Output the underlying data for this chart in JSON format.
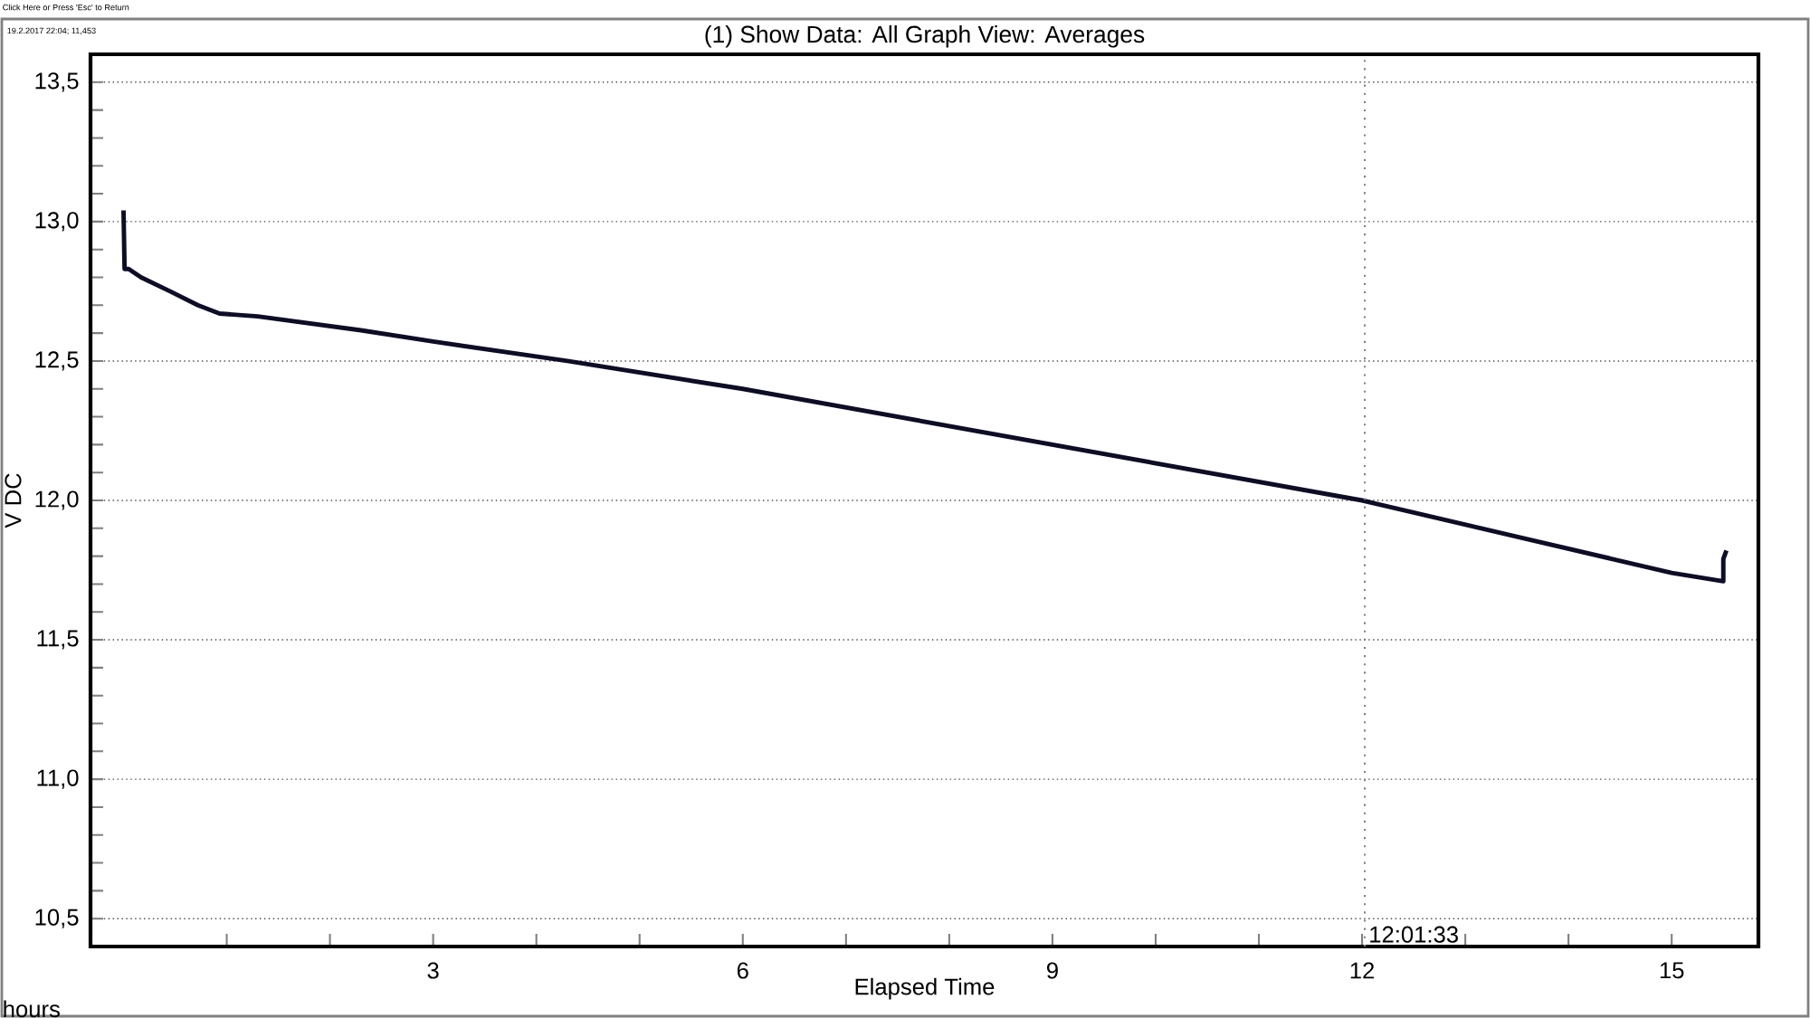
{
  "chart_data": {
    "type": "line",
    "title": "(1)  Show Data: All   Graph View: Averages",
    "xlabel": "Elapsed Time",
    "ylabel": "V DC",
    "annotations": [
      "hours",
      "19.2.2017 22:04; 11,453",
      "Click Here or Press 'Esc' to Return"
    ],
    "x": [
      0,
      0.01,
      0.05,
      0.17,
      0.45,
      0.72,
      0.93,
      1.3,
      2.3,
      3,
      4.3,
      6,
      7.5,
      9,
      10.5,
      12,
      13.5,
      15,
      15.5,
      15.5,
      15.53
    ],
    "series": [
      {
        "color": "#0d0d26",
        "values": [
          13.04,
          12.83,
          12.83,
          12.8,
          12.75,
          12.7,
          12.67,
          12.66,
          12.61,
          12.57,
          12.5,
          12.4,
          12.3,
          12.2,
          12.1,
          12.0,
          11.87,
          11.74,
          11.71,
          11.79,
          11.82
        ]
      }
    ],
    "xlim": [
      -0.32,
      15.84
    ],
    "ylim": [
      10.4,
      13.6
    ],
    "xticks": [
      {
        "value": 1,
        "label": null
      },
      {
        "value": 2,
        "label": null
      },
      3,
      {
        "value": 4,
        "label": null
      },
      {
        "value": 5,
        "label": null
      },
      6,
      {
        "value": 7,
        "label": null
      },
      {
        "value": 8,
        "label": null
      },
      9,
      {
        "value": 10,
        "label": null
      },
      {
        "value": 11,
        "label": null
      },
      12,
      {
        "value": 13,
        "label": null
      },
      {
        "value": 14,
        "label": null
      },
      15
    ],
    "yticks": [
      {
        "value": 10.5,
        "label": "10,5"
      },
      {
        "value": 10.6,
        "label": null
      },
      {
        "value": 10.7,
        "label": null
      },
      {
        "value": 10.8,
        "label": null
      },
      {
        "value": 10.9,
        "label": null
      },
      {
        "value": 11.0,
        "label": "11,0"
      },
      {
        "value": 11.1,
        "label": null
      },
      {
        "value": 11.2,
        "label": null
      },
      {
        "value": 11.3,
        "label": null
      },
      {
        "value": 11.4,
        "label": null
      },
      {
        "value": 11.5,
        "label": "11,5"
      },
      {
        "value": 11.6,
        "label": null
      },
      {
        "value": 11.7,
        "label": null
      },
      {
        "value": 11.8,
        "label": null
      },
      {
        "value": 11.9,
        "label": null
      },
      {
        "value": 12.0,
        "label": "12,0"
      },
      {
        "value": 12.1,
        "label": null
      },
      {
        "value": 12.2,
        "label": null
      },
      {
        "value": 12.3,
        "label": null
      },
      {
        "value": 12.4,
        "label": null
      },
      {
        "value": 12.5,
        "label": "12,5"
      },
      {
        "value": 12.6,
        "label": null
      },
      {
        "value": 12.7,
        "label": null
      },
      {
        "value": 12.8,
        "label": null
      },
      {
        "value": 12.9,
        "label": null
      },
      {
        "value": 13.0,
        "label": "13,0"
      },
      {
        "value": 13.1,
        "label": null
      },
      {
        "value": 13.2,
        "label": null
      },
      {
        "value": 13.3,
        "label": null
      },
      {
        "value": 13.4,
        "label": null
      },
      {
        "value": 13.5,
        "label": "13,5"
      }
    ],
    "ref_lines": [
      {
        "axis": "x",
        "value": 12.026,
        "label": "12:01:33",
        "color": "#808080",
        "line_style": "dotted"
      }
    ],
    "grid": "y",
    "marker": "none",
    "line_style": "solid"
  }
}
